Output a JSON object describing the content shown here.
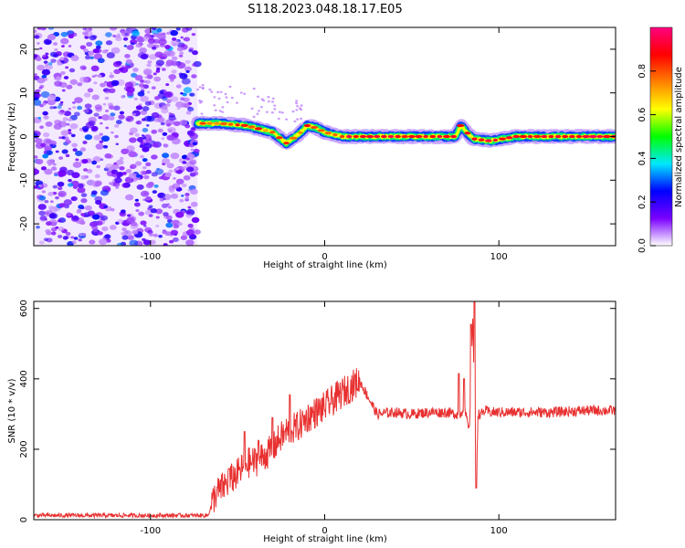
{
  "title": "S118.2023.048.18.17.E05",
  "chart_data": [
    {
      "type": "heatmap",
      "xlabel": "Height of straight line (km)",
      "ylabel": "Frequency (Hz)",
      "xlim": [
        -167,
        167
      ],
      "ylim": [
        -25,
        25
      ],
      "xticks": [
        -100,
        0,
        100
      ],
      "yticks": [
        -20,
        -10,
        0,
        10,
        20
      ],
      "colorbar": {
        "label": "Normalized spectral amplitude",
        "range": [
          0,
          1
        ],
        "ticks": [
          "0.0",
          "0.2",
          "0.4",
          "0.6",
          "0.8"
        ],
        "tick_values": [
          0,
          0.2,
          0.4,
          0.6,
          0.8
        ],
        "colors": [
          "#ffffff",
          "#7a00ff",
          "#0000ff",
          "#00e8ff",
          "#00ff00",
          "#ffff00",
          "#ff8000",
          "#ff0000",
          "#ff0080"
        ]
      },
      "noise_region": {
        "x": [
          -167,
          -73
        ],
        "freq": [
          -25,
          25
        ],
        "amplitude_range": [
          0,
          0.2
        ]
      },
      "signal_track": {
        "x": [
          -73,
          -60,
          -45,
          -30,
          -22,
          -15,
          -10,
          -5,
          0,
          10,
          20,
          40,
          60,
          75,
          78,
          85,
          95,
          110,
          130,
          150,
          167
        ],
        "freq": [
          3,
          3,
          2.5,
          1,
          -1.5,
          0.5,
          2.5,
          2,
          1,
          0,
          0,
          0,
          0,
          0,
          2.5,
          -0.5,
          -1,
          0,
          0,
          0,
          0
        ],
        "peak_amplitude": 0.95
      }
    },
    {
      "type": "line",
      "xlabel": "Height of straight line (km)",
      "ylabel": "SNR (10 * v/v)",
      "xlim": [
        -167,
        167
      ],
      "ylim": [
        0,
        620
      ],
      "xticks": [
        -100,
        0,
        100
      ],
      "yticks": [
        0,
        200,
        400,
        600
      ],
      "color": "#e83030",
      "series": [
        {
          "x": [
            -167,
            -120,
            -80,
            -67,
            -63,
            -55,
            -50,
            -45,
            -40,
            -35,
            -30,
            -26,
            -22,
            -15,
            -10,
            0,
            10,
            20,
            30,
            40,
            50,
            60,
            70,
            75,
            78,
            80,
            83,
            85,
            86,
            87,
            88,
            90,
            92,
            95,
            100,
            110,
            130,
            150,
            167
          ],
          "y": [
            12,
            12,
            12,
            12,
            70,
            110,
            130,
            160,
            165,
            180,
            200,
            230,
            250,
            265,
            290,
            320,
            360,
            395,
            300,
            305,
            300,
            305,
            305,
            300,
            300,
            320,
            250,
            580,
            320,
            100,
            300,
            300,
            310,
            305,
            305,
            305,
            305,
            310,
            310
          ],
          "spikes": [
            {
              "x": -55,
              "y": 145
            },
            {
              "x": -46,
              "y": 250
            },
            {
              "x": -38,
              "y": 225
            },
            {
              "x": -30,
              "y": 290
            },
            {
              "x": -23,
              "y": 250
            },
            {
              "x": -20,
              "y": 355
            },
            {
              "x": 77,
              "y": 415
            },
            {
              "x": 80,
              "y": 400
            },
            {
              "x": 84,
              "y": 555
            },
            {
              "x": 86,
              "y": 620
            },
            {
              "x": 87,
              "y": 90
            }
          ]
        }
      ]
    }
  ]
}
